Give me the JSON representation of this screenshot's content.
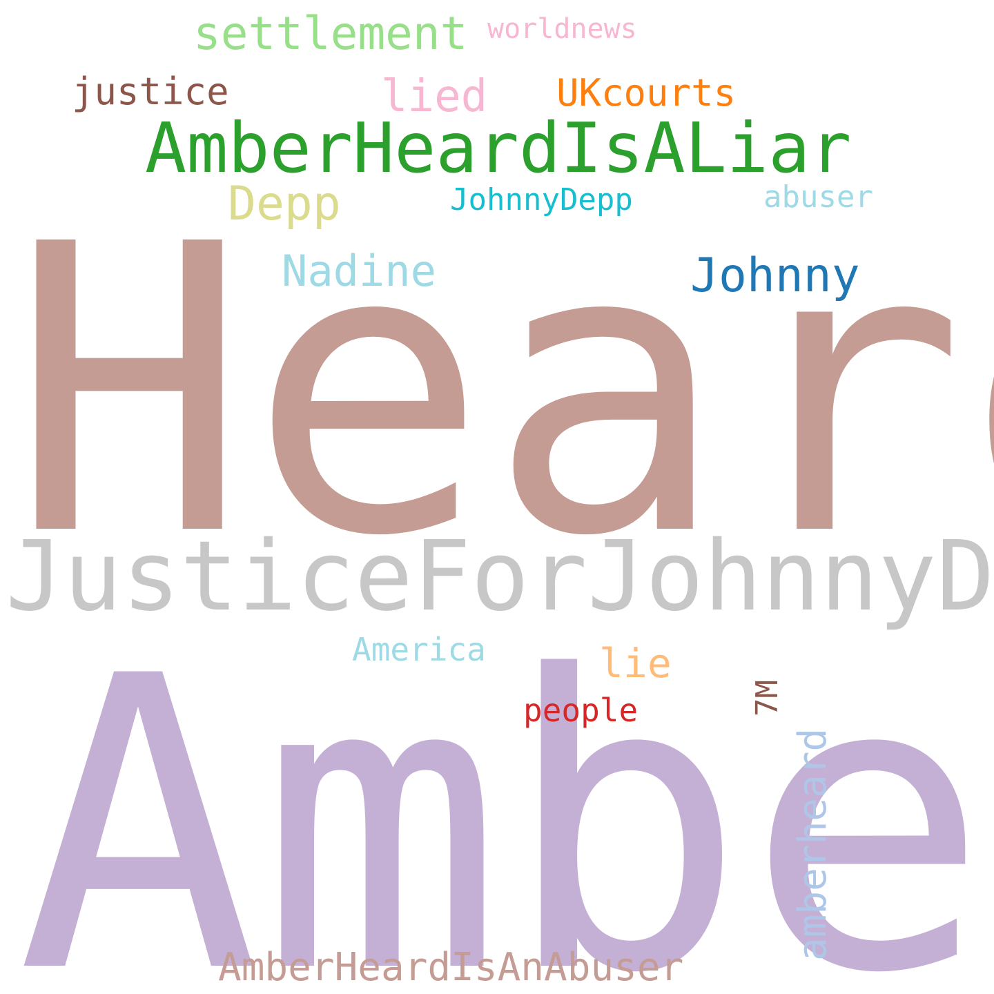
{
  "word_cloud": {
    "background": "#ffffff",
    "words": [
      {
        "key": "heard",
        "text": "Heard",
        "color": "#c49c94"
      },
      {
        "key": "justice_for_johnny_depp",
        "text": "JusticeForJohnnyDepp",
        "color": "#c7c7c7"
      },
      {
        "key": "amber",
        "text": "Amber",
        "color": "#c5b0d5"
      },
      {
        "key": "amber_heard_is_a_liar",
        "text": "AmberHeardIsALiar",
        "color": "#2ca02c"
      },
      {
        "key": "settlement",
        "text": "settlement",
        "color": "#98df8a"
      },
      {
        "key": "worldnews",
        "text": "worldnews",
        "color": "#f7b6d2"
      },
      {
        "key": "justice",
        "text": "justice",
        "color": "#8c564b"
      },
      {
        "key": "lied",
        "text": "lied",
        "color": "#f7b6d2"
      },
      {
        "key": "ukcourts",
        "text": "UKcourts",
        "color": "#ff7f0e"
      },
      {
        "key": "depp",
        "text": "Depp",
        "color": "#dbdb8d"
      },
      {
        "key": "johnnydepp",
        "text": "JohnnyDepp",
        "color": "#17becf"
      },
      {
        "key": "abuser",
        "text": "abuser",
        "color": "#9edae5"
      },
      {
        "key": "nadine",
        "text": "Nadine",
        "color": "#9edae5"
      },
      {
        "key": "johnny",
        "text": "Johnny",
        "color": "#1f77b4"
      },
      {
        "key": "america",
        "text": "America",
        "color": "#9edae5"
      },
      {
        "key": "lie",
        "text": "lie",
        "color": "#ffbb78"
      },
      {
        "key": "people",
        "text": "people",
        "color": "#d62728"
      },
      {
        "key": "amber_heard_is_an_abuser",
        "text": "AmberHeardIsAnAbuser",
        "color": "#c49c94"
      },
      {
        "key": "seven_m",
        "text": "7M",
        "color": "#8c564b"
      },
      {
        "key": "amberheard",
        "text": "amberheard",
        "color": "#aec7e8"
      }
    ]
  }
}
